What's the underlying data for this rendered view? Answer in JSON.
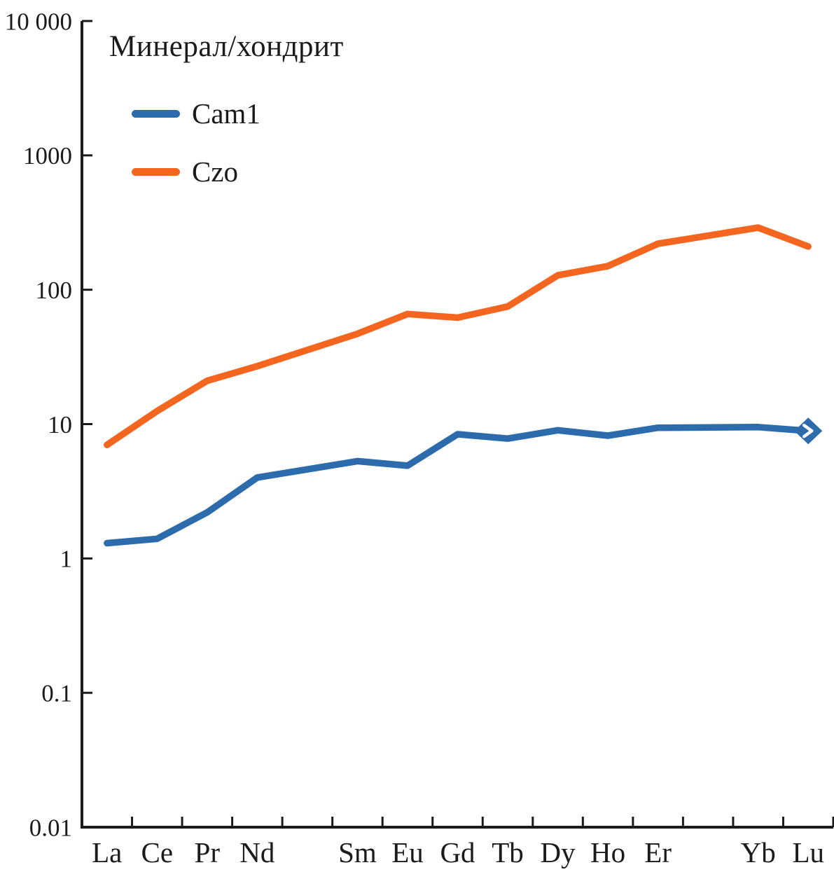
{
  "title": "Минерал/хондрит",
  "chart_data": {
    "type": "line",
    "title": "Минерал/хондрит",
    "x_categories": [
      "La",
      "Ce",
      "Pr",
      "Nd",
      "",
      "Sm",
      "Eu",
      "Gd",
      "Tb",
      "Dy",
      "Ho",
      "Er",
      "",
      "Yb",
      "Lu"
    ],
    "y_scale": "log",
    "ylim": [
      0.01,
      10000
    ],
    "y_tick_labels": [
      "10 000",
      "1000",
      "100",
      "10",
      "1",
      "0.1",
      "0.01"
    ],
    "y_tick_values": [
      10000,
      1000,
      100,
      10,
      1,
      0.1,
      0.01
    ],
    "grid": false,
    "legend_position": "top-left",
    "axis_color": "#1b1b1b",
    "series": [
      {
        "name": "Cam1",
        "color": "#2c6bac",
        "end_marker": "diamond",
        "values": [
          1.3,
          1.4,
          2.2,
          4.0,
          null,
          5.3,
          4.9,
          8.4,
          7.8,
          9.0,
          8.2,
          9.4,
          null,
          9.5,
          8.9
        ]
      },
      {
        "name": "Czo",
        "color": "#f4651f",
        "end_marker": null,
        "values": [
          7.0,
          12.5,
          21,
          27,
          null,
          47,
          66,
          62,
          75,
          128,
          150,
          220,
          null,
          290,
          210
        ]
      }
    ]
  }
}
